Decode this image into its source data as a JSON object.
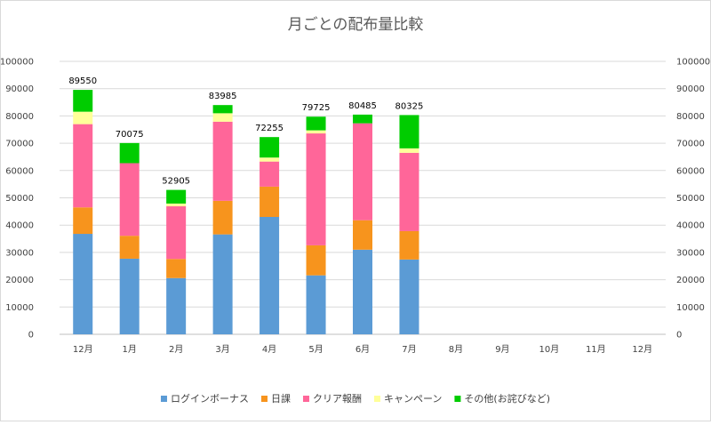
{
  "chart_data": {
    "type": "bar",
    "stacked": true,
    "title": "月ごとの配布量比較",
    "categories": [
      "12月",
      "1月",
      "2月",
      "3月",
      "4月",
      "5月",
      "6月",
      "7月",
      "8月",
      "9月",
      "10月",
      "11月",
      "12月"
    ],
    "series": [
      {
        "name": "ログインボーナス",
        "color": "#5b9bd5",
        "values": [
          36800,
          27700,
          20600,
          36600,
          43000,
          21600,
          31000,
          27400,
          0,
          0,
          0,
          0,
          0
        ]
      },
      {
        "name": "日課",
        "color": "#f7941d",
        "values": [
          9700,
          8400,
          7000,
          12300,
          11100,
          11000,
          10800,
          10400,
          0,
          0,
          0,
          0,
          0
        ]
      },
      {
        "name": "クリア報酬",
        "color": "#ff6699",
        "values": [
          30500,
          26600,
          19300,
          29000,
          9200,
          41000,
          35500,
          28700,
          0,
          0,
          0,
          0,
          0
        ]
      },
      {
        "name": "キャンペーン",
        "color": "#ffff99",
        "values": [
          4550,
          0,
          1000,
          3085,
          1455,
          1125,
          0,
          1625,
          0,
          0,
          0,
          0,
          0
        ]
      },
      {
        "name": "その他(お詫びなど)",
        "color": "#00cc00",
        "values": [
          8000,
          7375,
          5005,
          3000,
          7500,
          5000,
          3185,
          12200,
          0,
          0,
          0,
          0,
          0
        ]
      }
    ],
    "totals": [
      "89550",
      "70075",
      "52905",
      "83985",
      "72255",
      "79725",
      "80485",
      "80325",
      "",
      "",
      "",
      "",
      ""
    ],
    "ylim": [
      0,
      100000
    ],
    "ytick_step": 10000,
    "yticks": [
      "0",
      "10000",
      "20000",
      "30000",
      "40000",
      "50000",
      "60000",
      "70000",
      "80000",
      "90000",
      "100000"
    ],
    "secondary_axis": true,
    "grid": true,
    "legend_position": "bottom",
    "xlabel": "",
    "ylabel": ""
  }
}
